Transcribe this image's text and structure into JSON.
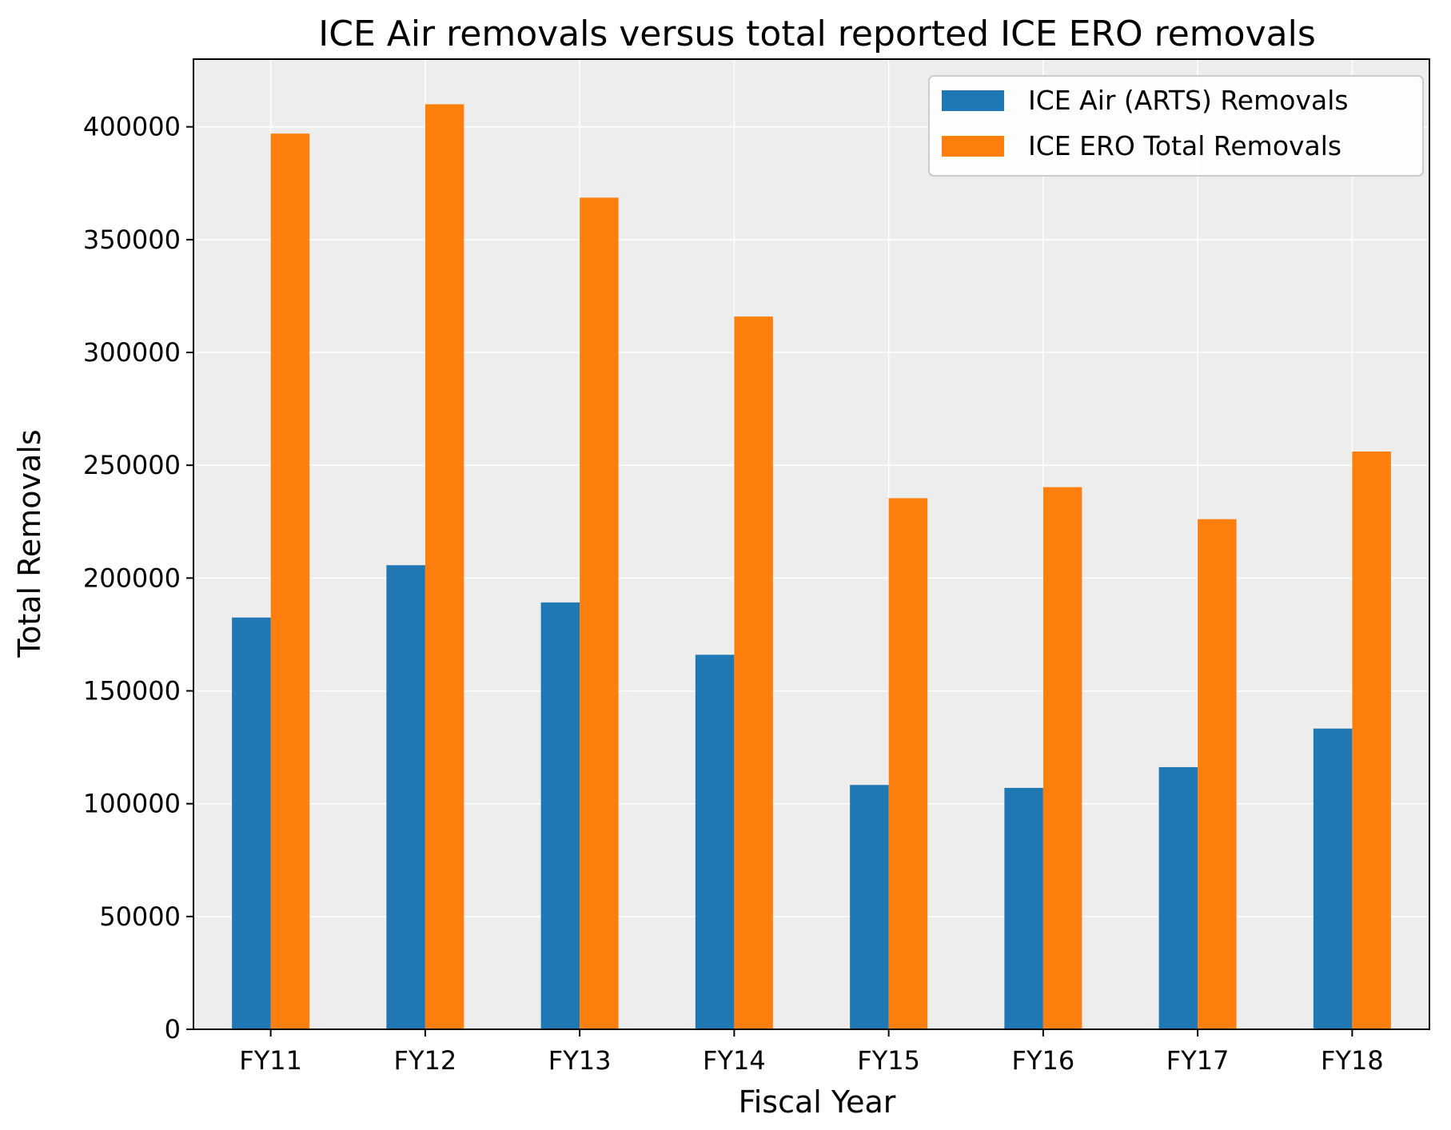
{
  "chart_data": {
    "type": "bar",
    "title": "ICE Air removals versus total reported ICE ERO removals",
    "xlabel": "Fiscal Year",
    "ylabel": "Total Removals",
    "categories": [
      "FY11",
      "FY12",
      "FY13",
      "FY14",
      "FY15",
      "FY16",
      "FY17",
      "FY18"
    ],
    "series": [
      {
        "name": "ICE Air (ARTS) Removals",
        "color": "#1f77b4",
        "values": [
          182500,
          205700,
          189200,
          166000,
          108300,
          107000,
          116200,
          133300
        ]
      },
      {
        "name": "ICE ERO Total Removals",
        "color": "#ff7f0e",
        "values": [
          397000,
          410000,
          368600,
          315900,
          235400,
          240300,
          226100,
          256100
        ]
      }
    ],
    "ylim": [
      0,
      430000
    ],
    "yticks": [
      0,
      50000,
      100000,
      150000,
      200000,
      250000,
      300000,
      350000,
      400000
    ],
    "grid": true,
    "legend_position": "top-right",
    "background": "#ededed"
  }
}
